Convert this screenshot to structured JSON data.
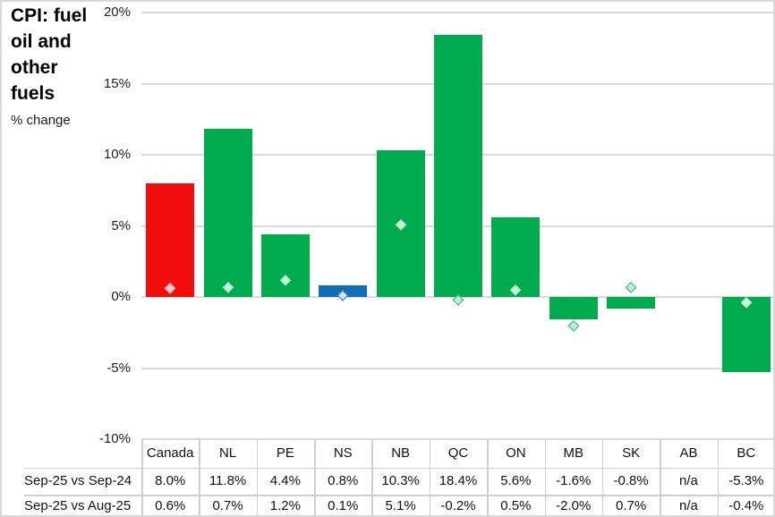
{
  "chart_data": {
    "type": "bar",
    "title": "CPI: fuel oil and other fuels",
    "subtitle": "% change",
    "categories": [
      "Canada",
      "NL",
      "PE",
      "NS",
      "NB",
      "QC",
      "ON",
      "MB",
      "SK",
      "AB",
      "BC"
    ],
    "series": [
      {
        "name": "Sep-25 vs Sep-24",
        "role": "bars",
        "values": [
          8.0,
          11.8,
          4.4,
          0.8,
          10.3,
          18.4,
          5.6,
          -1.6,
          -0.8,
          null,
          -5.3
        ]
      },
      {
        "name": "Sep-25 vs Aug-25",
        "role": "markers",
        "values": [
          0.6,
          0.7,
          1.2,
          0.1,
          5.1,
          -0.2,
          0.5,
          -2.0,
          0.7,
          null,
          -0.4
        ]
      }
    ],
    "y_ticks": [
      20,
      15,
      10,
      5,
      0,
      -5,
      -10
    ],
    "y_tick_suffix": "%",
    "ylim": [
      -10,
      20
    ],
    "grid": true,
    "legend_position": "none",
    "na_text": "n/a",
    "bar_colors": [
      "#f20d0d",
      "#00ab50",
      "#00ab50",
      "#0f6eb4",
      "#00ab50",
      "#00ab50",
      "#00ab50",
      "#00ab50",
      "#00ab50",
      null,
      "#00ab50"
    ],
    "marker_fill": [
      "#f8cbcb",
      "#c9f0da",
      "#c9f0da",
      "#cde2f4",
      "#c9f0da",
      "#bfeed3",
      "#c9f0da",
      "#bfeed3",
      "#bfeed3",
      null,
      "#d6f5e3"
    ],
    "marker_stroke": [
      "#f0a8a8",
      "#90e0b5",
      "#90e0b5",
      "#2e75b6",
      "#90e0b5",
      "#2fb36e",
      "#90e0b5",
      "#2fb36e",
      "#2fb36e",
      null,
      "#a5e9c4"
    ],
    "table": {
      "row_labels": [
        "Sep-25 vs Sep-24",
        "Sep-25 vs Aug-25"
      ],
      "header": [
        "Canada",
        "NL",
        "PE",
        "NS",
        "NB",
        "QC",
        "ON",
        "MB",
        "SK",
        "AB",
        "BC"
      ],
      "rows": [
        [
          "8.0%",
          "11.8%",
          "4.4%",
          "0.8%",
          "10.3%",
          "18.4%",
          "5.6%",
          "-1.6%",
          "-0.8%",
          "n/a",
          "-5.3%"
        ],
        [
          "0.6%",
          "0.7%",
          "1.2%",
          "0.1%",
          "5.1%",
          "-0.2%",
          "0.5%",
          "-2.0%",
          "0.7%",
          "n/a",
          "-0.4%"
        ]
      ]
    },
    "colors": {
      "canada_bar": "#f20d0d",
      "province_bar": "#00ab50",
      "ns_bar": "#0f6eb4",
      "gridline": "#d9d9d9",
      "table_line": "#cfcfcf",
      "frame_border": "#d8d8d8"
    }
  }
}
